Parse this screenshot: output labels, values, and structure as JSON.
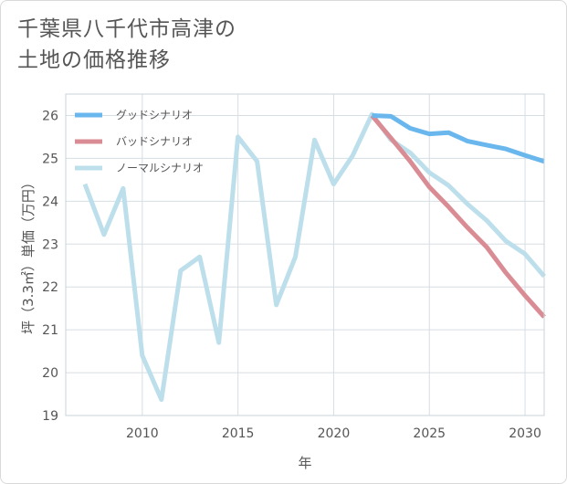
{
  "title": {
    "line1": "千葉県八千代市高津の",
    "line2": "土地の価格推移"
  },
  "chart_data": {
    "type": "line",
    "title": "千葉県八千代市高津の土地の価格推移",
    "xlabel": "年",
    "ylabel": "坪（3.3㎡）単価（万円）",
    "xlim": [
      2006,
      2031
    ],
    "ylim": [
      19,
      26.5
    ],
    "x_ticks": [
      "2010",
      "2015",
      "2020",
      "2025",
      "2030"
    ],
    "y_ticks": [
      "19",
      "20",
      "21",
      "22",
      "23",
      "24",
      "25",
      "26"
    ],
    "legend_position": "top-left",
    "series": [
      {
        "name": "グッドシナリオ",
        "color": "#6ab7ee",
        "x": [
          2022,
          2023,
          2024,
          2025,
          2026,
          2027,
          2028,
          2029,
          2030,
          2031
        ],
        "values": [
          26.0,
          25.98,
          25.7,
          25.57,
          25.6,
          25.4,
          25.31,
          25.22,
          25.07,
          24.93
        ]
      },
      {
        "name": "バッドシナリオ",
        "color": "#d98c93",
        "x": [
          2022,
          2023,
          2024,
          2025,
          2026,
          2027,
          2028,
          2029,
          2030,
          2031
        ],
        "values": [
          26.0,
          25.47,
          24.93,
          24.33,
          23.87,
          23.38,
          22.93,
          22.33,
          21.8,
          21.3
        ]
      },
      {
        "name": "ノーマルシナリオ",
        "color": "#bcdfeb",
        "x": [
          2007,
          2008,
          2009,
          2010,
          2011,
          2012,
          2013,
          2014,
          2015,
          2016,
          2017,
          2018,
          2019,
          2020,
          2021,
          2022,
          2023,
          2024,
          2025,
          2026,
          2027,
          2028,
          2029,
          2030,
          2031
        ],
        "values": [
          24.4,
          23.22,
          24.3,
          20.4,
          19.37,
          22.38,
          22.7,
          20.7,
          25.5,
          24.93,
          21.58,
          22.7,
          25.43,
          24.4,
          25.07,
          26.03,
          25.43,
          25.13,
          24.67,
          24.37,
          23.93,
          23.55,
          23.07,
          22.77,
          22.25
        ]
      }
    ]
  }
}
